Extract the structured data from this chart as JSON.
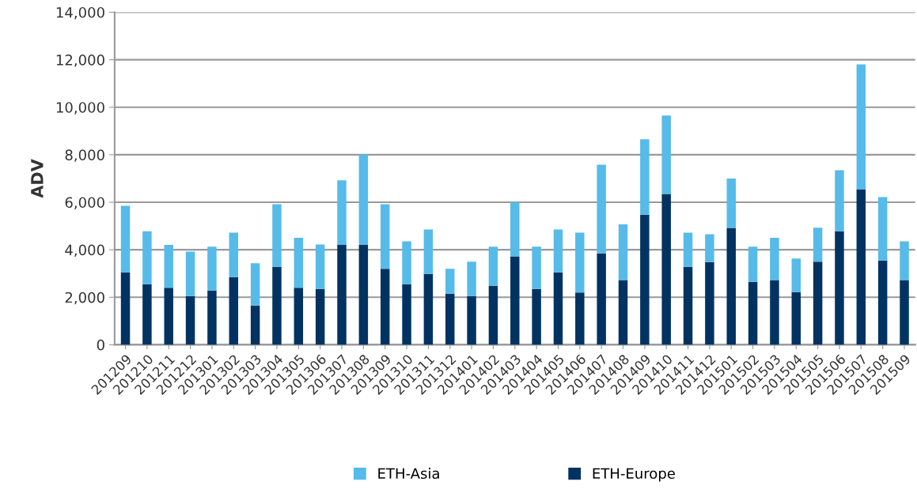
{
  "chart_data": {
    "type": "bar",
    "ylabel": "ADV",
    "stacked": true,
    "grid": "y",
    "legend": "bottom",
    "categories": [
      "201209",
      "201210",
      "201211",
      "201212",
      "201301",
      "201302",
      "201303",
      "201304",
      "201305",
      "201306",
      "201307",
      "201308",
      "201309",
      "201310",
      "201311",
      "201312",
      "201401",
      "201402",
      "201403",
      "201404",
      "201405",
      "201406",
      "201407",
      "201408",
      "201409",
      "201410",
      "201411",
      "201412",
      "201501",
      "201502",
      "201503",
      "201504",
      "201505",
      "201506",
      "201507",
      "201508",
      "201509"
    ],
    "series": [
      {
        "name": "ETH-Europe",
        "color": "#003361",
        "values": [
          3050,
          2550,
          2400,
          2050,
          2280,
          2850,
          1650,
          3280,
          2400,
          2350,
          4200,
          4200,
          3200,
          2550,
          2980,
          2150,
          2050,
          2480,
          3720,
          2350,
          3050,
          2200,
          3850,
          2720,
          5480,
          6350,
          3280,
          3480,
          4920,
          2650,
          2720,
          2220,
          3500,
          4780,
          6550,
          3550,
          2720
        ]
      },
      {
        "name": "ETH-Asia",
        "color": "#56bbe9",
        "values": [
          2800,
          2230,
          1800,
          1870,
          1850,
          1870,
          1780,
          2640,
          2100,
          1870,
          2720,
          3800,
          2720,
          1800,
          1870,
          1050,
          1450,
          1650,
          2280,
          1780,
          1800,
          2520,
          3730,
          2350,
          3170,
          3300,
          1440,
          1170,
          2080,
          1480,
          1780,
          1410,
          1430,
          2570,
          5250,
          2670,
          1630
        ]
      }
    ],
    "ylim": [
      0,
      14000
    ],
    "yticks": [
      {
        "value": 0,
        "label": "0"
      },
      {
        "value": 2000,
        "label": "2,000"
      },
      {
        "value": 4000,
        "label": "4,000"
      },
      {
        "value": 6000,
        "label": "6,000"
      },
      {
        "value": 8000,
        "label": "8,000"
      },
      {
        "value": 10000,
        "label": "10,000"
      },
      {
        "value": 12000,
        "label": "12,000"
      },
      {
        "value": 14000,
        "label": "14,000"
      }
    ]
  }
}
